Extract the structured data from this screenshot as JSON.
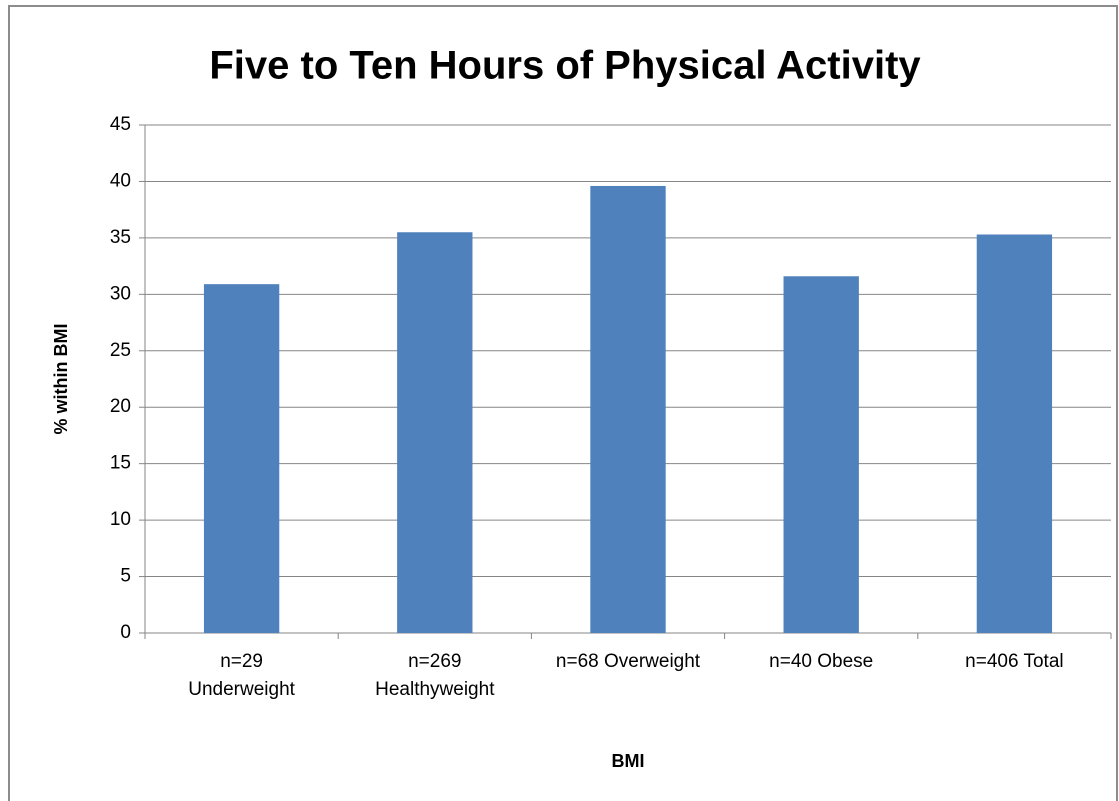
{
  "chart_data": {
    "type": "bar",
    "title": "Five to Ten Hours of Physical Activity",
    "x_label": "BMI",
    "y_label": "% within BMI",
    "categories": [
      "n=29\nUnderweight",
      "n=269\nHealthyweight",
      "n=68 Overweight",
      "n=40 Obese",
      "n=406 Total"
    ],
    "values": [
      30.9,
      35.5,
      39.6,
      31.6,
      35.3
    ],
    "color": "#4f81bd",
    "ylim": [
      0,
      45
    ],
    "yticks": [
      0,
      5,
      10,
      15,
      20,
      25,
      30,
      35,
      40,
      45
    ],
    "grid": true
  }
}
